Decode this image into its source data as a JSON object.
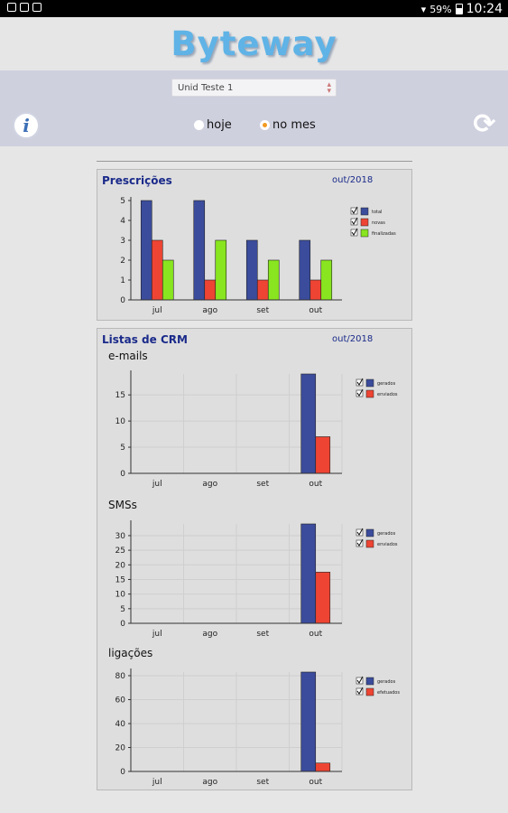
{
  "status_bar": {
    "battery": "59%",
    "time": "10:24"
  },
  "app": {
    "logo": "Byteway"
  },
  "filter": {
    "unit_select": "Unid Teste 1",
    "radio_options": [
      {
        "label": "hoje",
        "selected": false
      },
      {
        "label": "no mes",
        "selected": true
      }
    ]
  },
  "icons": {
    "info": "info-icon",
    "refresh": "refresh-icon"
  },
  "prescricoes": {
    "title": "Prescrições",
    "date": "out/2018"
  },
  "crm": {
    "title": "Listas de CRM",
    "date": "out/2018"
  },
  "colors": {
    "blue": "#3b4c9c",
    "red": "#ee4433",
    "green": "#88e51f",
    "accent": "#f39a1f",
    "logo": "#5fb3e6"
  },
  "chart_data": [
    {
      "type": "bar",
      "title": "Prescrições",
      "categories": [
        "jul",
        "ago",
        "set",
        "out"
      ],
      "series": [
        {
          "name": "total",
          "values": [
            5,
            5,
            3,
            3
          ]
        },
        {
          "name": "novas",
          "values": [
            3,
            1,
            1,
            1
          ]
        },
        {
          "name": "finalizadas",
          "values": [
            2,
            3,
            2,
            2
          ]
        }
      ],
      "ylim": [
        0,
        5
      ],
      "yticks": [
        0,
        1,
        2,
        3,
        4,
        5
      ],
      "grid": false,
      "legend": "right"
    },
    {
      "type": "bar",
      "title": "e-mails",
      "categories": [
        "jul",
        "ago",
        "set",
        "out"
      ],
      "series": [
        {
          "name": "gerados",
          "values": [
            0,
            0,
            0,
            19
          ]
        },
        {
          "name": "enviados",
          "values": [
            0,
            0,
            0,
            7
          ]
        }
      ],
      "ylim": [
        0,
        19
      ],
      "yticks": [
        0,
        5,
        10,
        15
      ],
      "grid": true,
      "legend": "right"
    },
    {
      "type": "bar",
      "title": "SMSs",
      "categories": [
        "jul",
        "ago",
        "set",
        "out"
      ],
      "series": [
        {
          "name": "gerados",
          "values": [
            0,
            0,
            0,
            34
          ]
        },
        {
          "name": "enviados",
          "values": [
            0,
            0,
            0,
            17.5
          ]
        }
      ],
      "ylim": [
        0,
        34
      ],
      "yticks": [
        0,
        5,
        10,
        15,
        20,
        25,
        30
      ],
      "grid": true,
      "legend": "right"
    },
    {
      "type": "bar",
      "title": "ligações",
      "categories": [
        "jul",
        "ago",
        "set",
        "out"
      ],
      "series": [
        {
          "name": "gerados",
          "values": [
            0,
            0,
            0,
            83
          ]
        },
        {
          "name": "efetuados",
          "values": [
            0,
            0,
            0,
            7
          ]
        }
      ],
      "ylim": [
        0,
        83
      ],
      "yticks": [
        0,
        20,
        40,
        60,
        80
      ],
      "grid": true,
      "legend": "right"
    }
  ]
}
